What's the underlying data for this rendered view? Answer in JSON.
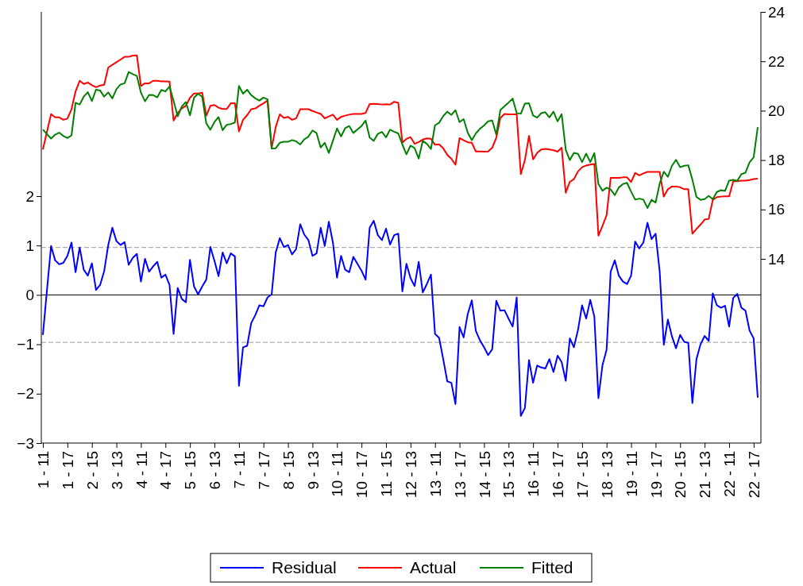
{
  "chart_data": {
    "type": "line",
    "categories": [
      "1 - 11",
      null,
      null,
      null,
      null,
      null,
      "1 - 17",
      null,
      null,
      null,
      null,
      null,
      "2 - 15",
      null,
      null,
      null,
      null,
      null,
      "3 - 13",
      null,
      null,
      null,
      null,
      null,
      "4 - 11",
      null,
      null,
      null,
      null,
      null,
      "4 - 17",
      null,
      null,
      null,
      null,
      null,
      "5 - 15",
      null,
      null,
      null,
      null,
      null,
      "6 - 13",
      null,
      null,
      null,
      null,
      null,
      "7 - 11",
      null,
      null,
      null,
      null,
      null,
      "7 - 17",
      null,
      null,
      null,
      null,
      null,
      "8 - 15",
      null,
      null,
      null,
      null,
      null,
      "9 - 13",
      null,
      null,
      null,
      null,
      null,
      "10 - 11",
      null,
      null,
      null,
      null,
      null,
      "10 - 17",
      null,
      null,
      null,
      null,
      null,
      "11 - 15",
      null,
      null,
      null,
      null,
      null,
      "12 - 13",
      null,
      null,
      null,
      null,
      null,
      "13 - 11",
      null,
      null,
      null,
      null,
      null,
      "13 - 17",
      null,
      null,
      null,
      null,
      null,
      "14 - 15",
      null,
      null,
      null,
      null,
      null,
      "15 - 13",
      null,
      null,
      null,
      null,
      null,
      "16 - 11",
      null,
      null,
      null,
      null,
      null,
      "16 - 17",
      null,
      null,
      null,
      null,
      null,
      "17 - 15",
      null,
      null,
      null,
      null,
      null,
      "18 - 13",
      null,
      null,
      null,
      null,
      null,
      "19 - 11",
      null,
      null,
      null,
      null,
      null,
      "19 - 17",
      null,
      null,
      null,
      null,
      null,
      "20 - 15",
      null,
      null,
      null,
      null,
      null,
      "21 - 13",
      null,
      null,
      null,
      null,
      null,
      "22 - 11",
      null,
      null,
      null,
      null,
      null,
      "22 - 17",
      null
    ],
    "series": [
      {
        "name": "Residual",
        "color": "#0000ff",
        "axis": "y",
        "values": [
          -0.81,
          0.1,
          0.99,
          0.7,
          0.62,
          0.65,
          0.79,
          1.06,
          0.46,
          0.96,
          0.51,
          0.39,
          0.64,
          0.1,
          0.2,
          0.48,
          1.01,
          1.36,
          1.09,
          1.01,
          1.07,
          0.61,
          0.75,
          0.83,
          0.27,
          0.73,
          0.47,
          0.58,
          0.67,
          0.35,
          0.41,
          0.2,
          -0.79,
          0.14,
          -0.08,
          -0.15,
          0.71,
          0.17,
          0.01,
          0.17,
          0.31,
          0.97,
          0.69,
          0.38,
          0.86,
          0.64,
          0.84,
          0.78,
          -1.84,
          -1.06,
          -1.03,
          -0.57,
          -0.41,
          -0.21,
          -0.23,
          -0.05,
          0.01,
          0.86,
          1.15,
          0.97,
          1.01,
          0.82,
          0.93,
          1.43,
          1.22,
          1.11,
          0.79,
          0.84,
          1.36,
          0.99,
          1.48,
          1.06,
          0.35,
          0.79,
          0.51,
          0.46,
          0.77,
          0.63,
          0.49,
          0.31,
          1.36,
          1.5,
          1.21,
          1.11,
          1.34,
          1.02,
          1.21,
          1.24,
          0.07,
          0.63,
          0.34,
          0.18,
          0.67,
          0.05,
          0.22,
          0.41,
          -0.79,
          -0.87,
          -1.3,
          -1.75,
          -1.78,
          -2.21,
          -0.65,
          -0.86,
          -0.39,
          -0.11,
          -0.73,
          -0.92,
          -1.06,
          -1.22,
          -1.1,
          -0.12,
          -0.32,
          -0.31,
          -0.48,
          -0.64,
          -0.05,
          -2.45,
          -2.29,
          -1.32,
          -1.78,
          -1.43,
          -1.47,
          -1.49,
          -1.3,
          -1.56,
          -1.23,
          -1.36,
          -1.74,
          -0.88,
          -1.06,
          -0.71,
          -0.21,
          -0.48,
          -0.1,
          -0.44,
          -2.09,
          -1.42,
          -1.11,
          0.47,
          0.7,
          0.39,
          0.27,
          0.22,
          0.39,
          1.08,
          0.94,
          1.06,
          1.46,
          1.13,
          1.24,
          0.47,
          -1.01,
          -0.5,
          -0.84,
          -1.08,
          -0.81,
          -0.95,
          -0.97,
          -2.19,
          -1.3,
          -1.0,
          -0.83,
          -0.93,
          0.03,
          -0.21,
          -0.26,
          -0.22,
          -0.64,
          -0.06,
          0.02,
          -0.26,
          -0.32,
          -0.72,
          -0.88,
          -2.08
        ]
      },
      {
        "name": "Actual",
        "color": "#ff0000",
        "axis": "y2",
        "values": [
          18.43,
          19.15,
          19.86,
          19.73,
          19.73,
          19.63,
          19.68,
          20.06,
          20.78,
          21.21,
          21.08,
          21.14,
          21.03,
          20.95,
          21.02,
          21.05,
          21.75,
          21.86,
          21.96,
          22.07,
          22.18,
          22.18,
          22.23,
          22.24,
          21.0,
          21.11,
          21.11,
          21.21,
          21.21,
          21.19,
          21.19,
          21.18,
          19.6,
          19.91,
          20.09,
          20.2,
          20.52,
          20.7,
          20.7,
          20.73,
          19.8,
          20.2,
          20.23,
          20.12,
          20.07,
          20.07,
          20.3,
          20.3,
          19.16,
          19.63,
          19.82,
          20.06,
          20.09,
          20.2,
          20.3,
          20.41,
          18.48,
          19.34,
          19.85,
          19.71,
          19.75,
          19.63,
          19.69,
          20.06,
          20.06,
          20.06,
          19.99,
          19.93,
          19.87,
          19.69,
          19.77,
          19.84,
          19.63,
          19.75,
          19.8,
          19.84,
          19.87,
          19.87,
          19.87,
          19.91,
          20.27,
          20.28,
          20.27,
          20.25,
          20.26,
          20.25,
          20.36,
          20.32,
          18.7,
          18.86,
          18.93,
          18.66,
          18.73,
          18.83,
          18.88,
          18.86,
          18.62,
          18.64,
          18.48,
          18.21,
          18.05,
          17.81,
          18.89,
          18.8,
          18.72,
          18.7,
          18.35,
          18.35,
          18.34,
          18.35,
          18.5,
          18.91,
          19.71,
          19.87,
          19.85,
          19.85,
          19.85,
          17.43,
          18.0,
          18.98,
          18.03,
          18.29,
          18.43,
          18.45,
          18.43,
          18.4,
          18.34,
          18.5,
          16.68,
          17.12,
          17.23,
          17.54,
          17.71,
          17.78,
          17.82,
          17.84,
          14.94,
          15.34,
          15.77,
          17.28,
          17.28,
          17.28,
          17.3,
          17.3,
          17.11,
          17.48,
          17.38,
          17.46,
          17.52,
          17.52,
          17.52,
          17.52,
          16.52,
          16.82,
          16.93,
          16.93,
          16.9,
          16.82,
          16.82,
          15.02,
          15.21,
          15.39,
          15.59,
          15.62,
          16.39,
          16.5,
          16.52,
          16.53,
          16.53,
          17.14,
          17.14,
          17.17,
          17.17,
          17.19,
          17.23,
          17.25
        ]
      },
      {
        "name": "Fitted",
        "color": "#008000",
        "axis": "y2",
        "values": [
          19.24,
          19.05,
          18.87,
          19.03,
          19.11,
          18.98,
          18.89,
          19.0,
          20.32,
          20.25,
          20.57,
          20.75,
          20.39,
          20.85,
          20.82,
          20.57,
          20.74,
          20.5,
          20.87,
          21.06,
          21.11,
          21.57,
          21.48,
          21.41,
          20.73,
          20.38,
          20.64,
          20.63,
          20.54,
          20.84,
          20.78,
          20.98,
          20.39,
          19.77,
          20.17,
          20.35,
          19.81,
          20.53,
          20.69,
          20.56,
          19.49,
          19.23,
          19.54,
          19.74,
          19.21,
          19.43,
          19.46,
          19.52,
          21.0,
          20.69,
          20.85,
          20.63,
          20.5,
          20.41,
          20.53,
          20.46,
          18.47,
          18.48,
          18.7,
          18.74,
          18.74,
          18.81,
          18.76,
          18.63,
          18.84,
          18.95,
          19.2,
          19.09,
          18.51,
          18.7,
          18.29,
          18.78,
          19.28,
          18.96,
          19.29,
          19.38,
          19.1,
          19.24,
          19.38,
          19.6,
          18.91,
          18.78,
          19.06,
          19.14,
          18.92,
          19.23,
          19.15,
          19.08,
          18.63,
          18.23,
          18.59,
          18.48,
          18.06,
          18.78,
          18.66,
          18.45,
          19.41,
          19.51,
          19.78,
          19.96,
          19.83,
          20.02,
          19.54,
          19.66,
          19.11,
          18.81,
          19.08,
          19.27,
          19.4,
          19.57,
          19.6,
          19.03,
          20.03,
          20.18,
          20.33,
          20.49,
          19.9,
          19.88,
          20.29,
          20.3,
          19.81,
          19.72,
          19.9,
          19.94,
          19.73,
          19.96,
          19.57,
          19.86,
          18.42,
          18.0,
          18.29,
          18.25,
          17.92,
          18.26,
          17.92,
          18.28,
          17.03,
          16.76,
          16.88,
          16.81,
          16.58,
          16.89,
          17.03,
          17.08,
          16.72,
          16.4,
          16.44,
          16.4,
          16.06,
          16.39,
          16.28,
          17.05,
          17.53,
          17.32,
          17.77,
          18.01,
          17.71,
          17.77,
          17.79,
          17.21,
          16.51,
          16.39,
          16.42,
          16.55,
          16.42,
          16.71,
          16.78,
          16.75,
          17.17,
          17.2,
          17.16,
          17.43,
          17.49,
          17.91,
          18.11,
          19.33
        ]
      }
    ],
    "ylim": [
      -3,
      5.73
    ],
    "yticks": [
      -3,
      -2,
      -1,
      0,
      1,
      2
    ],
    "y2lim": [
      6.54,
      24
    ],
    "y2ticks": [
      14,
      16,
      18,
      20,
      22,
      24
    ],
    "ref_lines": [
      {
        "axis": "y",
        "value": 0.96,
        "color": "#999999",
        "line_style": "dashed"
      },
      {
        "axis": "y",
        "value": -0.96,
        "color": "#999999",
        "line_style": "dashed"
      },
      {
        "axis": "y",
        "value": 0,
        "color": "#000000",
        "line_style": "solid"
      }
    ],
    "legend": "bottom"
  }
}
